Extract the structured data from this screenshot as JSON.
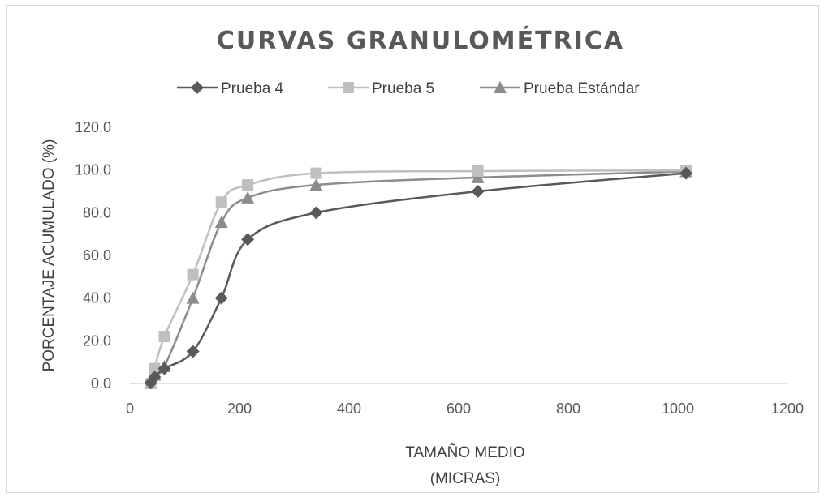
{
  "chart_data": {
    "type": "scatter",
    "title": "CURVAS GRANULOMÉTRICA",
    "xlabel_lines": [
      "TAMAÑO MEDIO",
      "(MICRAS)"
    ],
    "ylabel": "PORCENTAJE ACUMULADO (%)",
    "xlim": [
      0,
      1200
    ],
    "ylim": [
      0,
      120
    ],
    "x_ticks": [
      "0",
      "200",
      "400",
      "600",
      "800",
      "1000",
      "1200"
    ],
    "y_ticks": [
      "0.0",
      "20.0",
      "40.0",
      "60.0",
      "80.0",
      "100.0",
      "120.0"
    ],
    "grid": false,
    "legend_position": "top",
    "series": [
      {
        "name": "Prueba 4",
        "marker": "diamond",
        "color": "#595959",
        "points": [
          [
            38,
            0.3
          ],
          [
            45,
            3
          ],
          [
            63,
            7
          ],
          [
            115,
            15
          ],
          [
            167,
            40
          ],
          [
            215,
            67.5
          ],
          [
            340,
            80
          ],
          [
            635,
            90
          ],
          [
            1015,
            98.5
          ]
        ]
      },
      {
        "name": "Prueba 5",
        "marker": "square",
        "color": "#bfbfbf",
        "points": [
          [
            38,
            0
          ],
          [
            45,
            7
          ],
          [
            63,
            22
          ],
          [
            115,
            51
          ],
          [
            167,
            85
          ],
          [
            215,
            93
          ],
          [
            340,
            98.5
          ],
          [
            635,
            99.5
          ],
          [
            1015,
            99.8
          ]
        ]
      },
      {
        "name": "Prueba Estándar",
        "marker": "triangle",
        "color": "#8c8c8c",
        "points": [
          [
            38,
            0
          ],
          [
            45,
            4
          ],
          [
            63,
            8
          ],
          [
            115,
            40
          ],
          [
            167,
            75.5
          ],
          [
            215,
            87
          ],
          [
            340,
            93
          ],
          [
            635,
            96.5
          ],
          [
            1015,
            99.3
          ]
        ]
      }
    ]
  }
}
